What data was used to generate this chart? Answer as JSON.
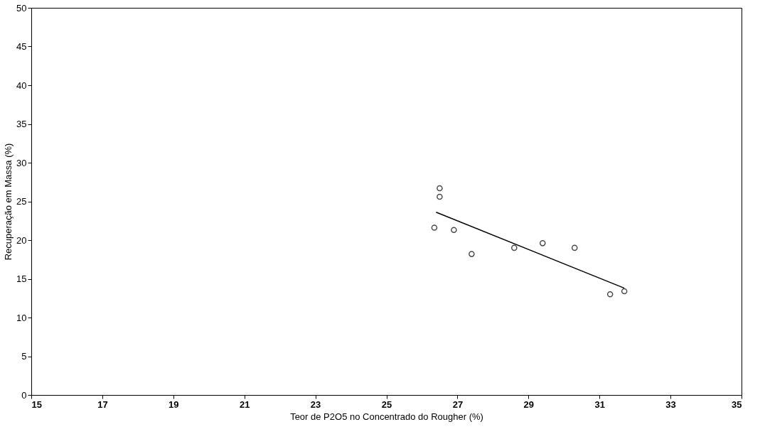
{
  "chart_data": {
    "type": "scatter",
    "xlabel": "Teor de P2O5 no Concentrado do Rougher (%)",
    "ylabel": "Recuperação em Massa (%)",
    "xlim": [
      15,
      35
    ],
    "xticks": [
      15,
      17,
      19,
      21,
      23,
      25,
      27,
      29,
      31,
      33,
      35
    ],
    "ylim": [
      0,
      50
    ],
    "yticks": [
      0,
      5,
      10,
      15,
      20,
      25,
      30,
      35,
      40,
      45,
      50
    ],
    "grid": false,
    "series": [
      {
        "color": "#000000",
        "marker": "circle",
        "x": [
          26.5,
          26.5,
          26.35,
          26.9,
          27.4,
          28.6,
          29.4,
          30.3,
          31.3,
          31.7
        ],
        "values": [
          26.7,
          25.6,
          21.6,
          21.3,
          18.2,
          19.0,
          19.6,
          19.0,
          13.0,
          13.4
        ]
      },
      {
        "type": "line",
        "color": "#000000",
        "line_style": "solid",
        "marker": "none",
        "x": [
          26.4,
          31.7
        ],
        "values": [
          23.6,
          13.8
        ]
      }
    ]
  }
}
